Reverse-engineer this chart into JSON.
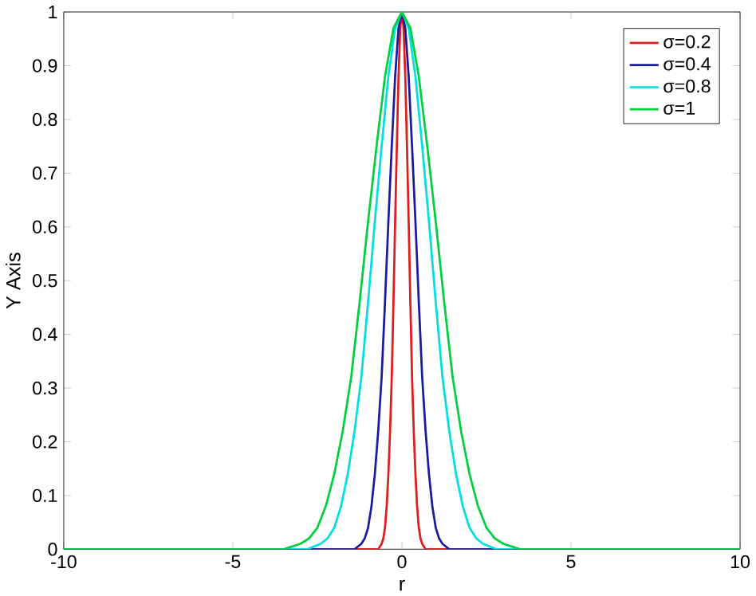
{
  "chart_data": {
    "type": "line",
    "xlabel": "r",
    "ylabel": "Y Axis",
    "xlim": [
      -10,
      10
    ],
    "ylim": [
      0,
      1
    ],
    "xticks": [
      -10,
      -5,
      0,
      5,
      10
    ],
    "yticks": [
      0,
      0.1,
      0.2,
      0.3,
      0.4,
      0.5,
      0.6,
      0.7,
      0.8,
      0.9,
      1
    ],
    "legend": "top right",
    "series": [
      {
        "name": "σ=0.2",
        "color": "#e01c1c",
        "x": [
          -10,
          -0.8,
          -0.7,
          -0.6,
          -0.55,
          -0.5,
          -0.45,
          -0.4,
          -0.35,
          -0.3,
          -0.25,
          -0.2,
          -0.15,
          -0.1,
          -0.05,
          0,
          0.05,
          0.1,
          0.15,
          0.2,
          0.25,
          0.3,
          0.35,
          0.4,
          0.45,
          0.5,
          0.55,
          0.6,
          0.7,
          0.8,
          10
        ],
        "values": [
          0,
          0,
          0,
          0.01,
          0.02,
          0.04,
          0.08,
          0.14,
          0.22,
          0.32,
          0.46,
          0.61,
          0.75,
          0.88,
          0.97,
          1,
          0.97,
          0.88,
          0.75,
          0.61,
          0.46,
          0.32,
          0.22,
          0.14,
          0.08,
          0.04,
          0.02,
          0.01,
          0,
          0,
          0
        ]
      },
      {
        "name": "σ=0.4",
        "color": "#1a1aa0",
        "x": [
          -10,
          -1.6,
          -1.4,
          -1.2,
          -1.1,
          -1.0,
          -0.9,
          -0.8,
          -0.7,
          -0.6,
          -0.5,
          -0.4,
          -0.3,
          -0.2,
          -0.1,
          0,
          0.1,
          0.2,
          0.3,
          0.4,
          0.5,
          0.6,
          0.7,
          0.8,
          0.9,
          1.0,
          1.1,
          1.2,
          1.4,
          1.6,
          10
        ],
        "values": [
          0,
          0,
          0,
          0.01,
          0.02,
          0.04,
          0.08,
          0.14,
          0.22,
          0.32,
          0.46,
          0.61,
          0.75,
          0.88,
          0.97,
          1,
          0.97,
          0.88,
          0.75,
          0.61,
          0.46,
          0.32,
          0.22,
          0.14,
          0.08,
          0.04,
          0.02,
          0.01,
          0,
          0,
          0
        ]
      },
      {
        "name": "σ=0.8",
        "color": "#00e0e0",
        "x": [
          -10,
          -3.2,
          -2.8,
          -2.4,
          -2.2,
          -2.0,
          -1.8,
          -1.6,
          -1.4,
          -1.2,
          -1.0,
          -0.8,
          -0.6,
          -0.4,
          -0.2,
          0,
          0.2,
          0.4,
          0.6,
          0.8,
          1.0,
          1.2,
          1.4,
          1.6,
          1.8,
          2.0,
          2.2,
          2.4,
          2.8,
          3.2,
          10
        ],
        "values": [
          0,
          0,
          0,
          0.01,
          0.02,
          0.04,
          0.08,
          0.14,
          0.22,
          0.32,
          0.46,
          0.61,
          0.75,
          0.88,
          0.97,
          1,
          0.97,
          0.88,
          0.75,
          0.61,
          0.46,
          0.32,
          0.22,
          0.14,
          0.08,
          0.04,
          0.02,
          0.01,
          0,
          0,
          0
        ]
      },
      {
        "name": "σ=1",
        "color": "#00d040",
        "x": [
          -10,
          -4,
          -3.5,
          -3,
          -2.75,
          -2.5,
          -2.25,
          -2,
          -1.75,
          -1.5,
          -1.25,
          -1,
          -0.75,
          -0.5,
          -0.25,
          0,
          0.25,
          0.5,
          0.75,
          1,
          1.25,
          1.5,
          1.75,
          2,
          2.25,
          2.5,
          2.75,
          3,
          3.5,
          4,
          10
        ],
        "values": [
          0,
          0,
          0,
          0.01,
          0.02,
          0.04,
          0.08,
          0.14,
          0.22,
          0.32,
          0.46,
          0.61,
          0.75,
          0.88,
          0.97,
          1,
          0.97,
          0.88,
          0.75,
          0.61,
          0.46,
          0.32,
          0.22,
          0.14,
          0.08,
          0.04,
          0.02,
          0.01,
          0,
          0,
          0
        ]
      }
    ]
  }
}
